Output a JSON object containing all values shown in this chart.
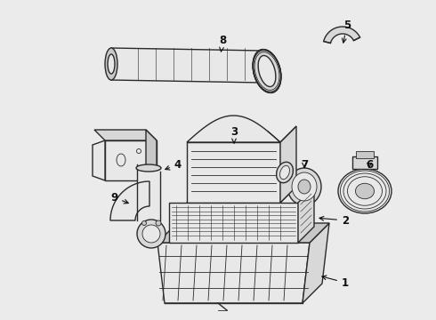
{
  "background_color": "#ebebeb",
  "line_color": "#2a2a2a",
  "text_color": "#111111",
  "fig_width": 4.9,
  "fig_height": 3.6,
  "dpi": 100,
  "font_size": 8.5,
  "lw_main": 1.0,
  "lw_thick": 1.5,
  "lw_thin": 0.6
}
